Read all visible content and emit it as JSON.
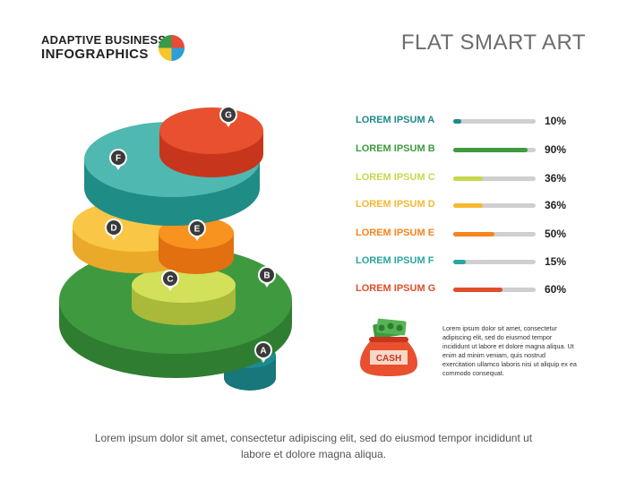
{
  "brand": {
    "line1": "ADAPTIVE BUSINESS",
    "line2": "INFOGRAPHICS",
    "logo": "pie-logo-icon",
    "logo_colors": [
      "#e84b37",
      "#2d9fd8",
      "#f5c62b",
      "#3b9a48"
    ]
  },
  "title": "FLAT SMART ART",
  "items": [
    {
      "letter": "A",
      "label": "LOREM IPSUM",
      "value": 10,
      "display": "10%",
      "color": "#1e8a8c"
    },
    {
      "letter": "B",
      "label": "LOREM IPSUM",
      "value": 90,
      "display": "90%",
      "color": "#3f9a3f"
    },
    {
      "letter": "C",
      "label": "LOREM IPSUM",
      "value": 36,
      "display": "36%",
      "color": "#c6d84a"
    },
    {
      "letter": "D",
      "label": "LOREM IPSUM",
      "value": 36,
      "display": "36%",
      "color": "#f7b731"
    },
    {
      "letter": "E",
      "label": "LOREM IPSUM",
      "value": 50,
      "display": "50%",
      "color": "#f7841c"
    },
    {
      "letter": "F",
      "label": "LOREM IPSUM",
      "value": 15,
      "display": "15%",
      "color": "#2aa5a0"
    },
    {
      "letter": "G",
      "label": "LOREM IPSUM",
      "value": 60,
      "display": "60%",
      "color": "#e14d2a"
    }
  ],
  "cash": {
    "label": "CASH",
    "icon": "money-bag-icon"
  },
  "side_text": "Lorem ipsum dolor sit amet, consectetur adipiscing elit, sed do eiusmod tempor incididunt ut labore et dolore magna aliqua. Ut enim ad minim veniam, quis nostrud exercitation ullamco laboris nisi ut aliquip ex ea commodo consequat.",
  "footer": "Lorem ipsum dolor sit amet, consectetur adipiscing elit, sed do eiusmod tempor incididunt ut labore et dolore magna aliqua."
}
